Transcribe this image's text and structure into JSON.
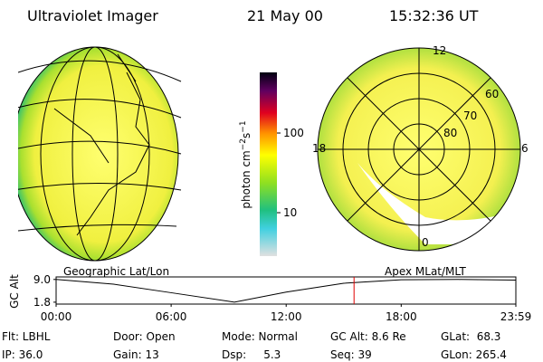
{
  "header": {
    "title": "Ultraviolet Imager",
    "date": "21 May 00",
    "time": "15:32:36 UT"
  },
  "colorbar": {
    "label": [
      "photon cm",
      "−2",
      "s",
      "−1"
    ],
    "clim": [
      2.85,
      577
    ],
    "log": true,
    "ticks": [
      10,
      100
    ]
  },
  "polar_plot": {
    "labels": [
      "12",
      "60",
      "70",
      "80",
      "18",
      "6",
      "0"
    ]
  },
  "panel_titles": [
    "Geographic Lat/Lon",
    "Apex MLat/MLT"
  ],
  "altitude_plot": {
    "ylabel": "GC Alt",
    "ylim": [
      1.2,
      9.8
    ],
    "yticks": [
      {
        "value": 9,
        "label": "9.0"
      },
      1.8
    ],
    "xlim": [
      0,
      23.98
    ],
    "xticks": [
      {
        "value": 0,
        "label": "00:00"
      },
      {
        "value": 6,
        "label": "06:00"
      },
      {
        "value": 12,
        "label": "12:00"
      },
      {
        "value": 18,
        "label": "18:00"
      },
      {
        "value": 23.98,
        "label": "23:59"
      }
    ],
    "x": [
      0,
      3,
      6,
      9.3,
      12,
      15,
      18,
      21,
      23.98
    ],
    "values": [
      9.0,
      7.5,
      4.8,
      1.8,
      5.0,
      7.8,
      8.9,
      9.0,
      8.8
    ],
    "marker": 15.54,
    "marker_color": "#e00000"
  },
  "footer": {
    "rows": [
      [
        "Flt: LBHL",
        "Door: Open",
        "Mode: Normal",
        "GC Alt: 8.6 Re",
        "GLat:  68.3"
      ],
      [
        "IP: 36.0",
        "Gain: 13",
        "Dsp:     5.3",
        "Seq: 39",
        "GLon: 265.4"
      ]
    ]
  }
}
